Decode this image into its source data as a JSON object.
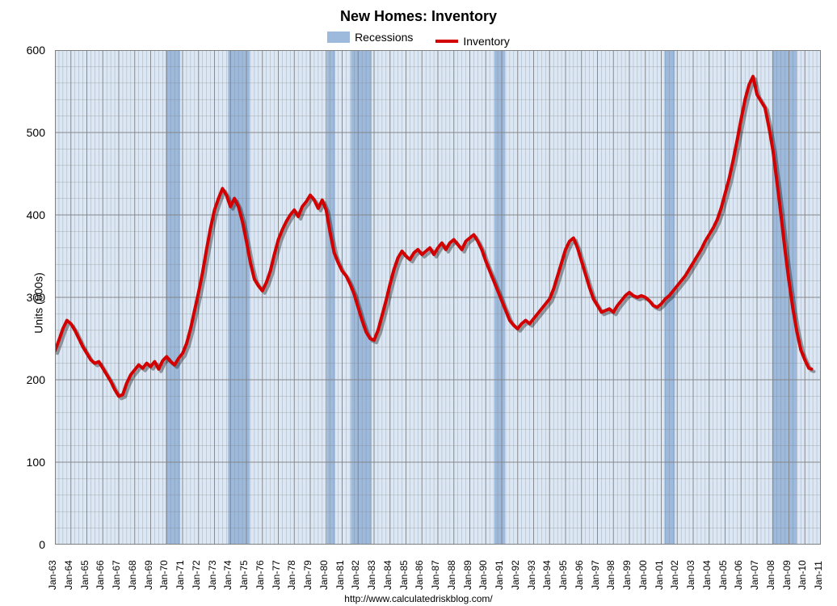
{
  "chart": {
    "type": "line",
    "title": "New Homes: Inventory",
    "y_axis_label": "Units (000s)",
    "footer": "http://www.calculatedriskblog.com/",
    "x_labels": [
      "Jan-63",
      "Jan-64",
      "Jan-65",
      "Jan-66",
      "Jan-67",
      "Jan-68",
      "Jan-69",
      "Jan-70",
      "Jan-71",
      "Jan-72",
      "Jan-73",
      "Jan-74",
      "Jan-75",
      "Jan-76",
      "Jan-77",
      "Jan-78",
      "Jan-79",
      "Jan-80",
      "Jan-81",
      "Jan-82",
      "Jan-83",
      "Jan-84",
      "Jan-85",
      "Jan-86",
      "Jan-87",
      "Jan-88",
      "Jan-89",
      "Jan-90",
      "Jan-91",
      "Jan-92",
      "Jan-93",
      "Jan-94",
      "Jan-95",
      "Jan-96",
      "Jan-97",
      "Jan-98",
      "Jan-99",
      "Jan-00",
      "Jan-01",
      "Jan-02",
      "Jan-03",
      "Jan-04",
      "Jan-05",
      "Jan-06",
      "Jan-07",
      "Jan-08",
      "Jan-09",
      "Jan-10",
      "Jan-11"
    ],
    "x_range": {
      "start_year": 1963,
      "end_year": 2011
    },
    "y_ticks": [
      0,
      100,
      200,
      300,
      400,
      500,
      600
    ],
    "ylim": [
      0,
      600
    ],
    "background_color": "#dbe7f4",
    "panel_border_color": "#808080",
    "grid_color": "#808080",
    "grid_minor_stroke": 0.5,
    "grid_major_stroke": 1,
    "recession_color": "#9db9dc",
    "line_color": "#d20000",
    "line_width": 4,
    "line_shadow_color": "rgba(0,0,0,0.35)",
    "line_shadow_dx": 3,
    "line_shadow_dy": 3,
    "title_fontsize": 18,
    "label_fontsize": 14,
    "tick_fontsize": 14,
    "legend": [
      {
        "label": "Recessions",
        "type": "swatch",
        "color": "#9db9dc"
      },
      {
        "label": "Inventory",
        "type": "line",
        "color": "#d20000"
      }
    ],
    "recessions": [
      {
        "start": 1969.95,
        "end": 1970.85
      },
      {
        "start": 1973.85,
        "end": 1975.2
      },
      {
        "start": 1980.05,
        "end": 1980.55
      },
      {
        "start": 1981.55,
        "end": 1982.85
      },
      {
        "start": 1990.55,
        "end": 1991.2
      },
      {
        "start": 2001.2,
        "end": 2001.85
      },
      {
        "start": 2007.95,
        "end": 2009.5
      }
    ],
    "series": {
      "name": "Inventory",
      "points": [
        {
          "t": 1963.0,
          "v": 235
        },
        {
          "t": 1963.25,
          "v": 248
        },
        {
          "t": 1963.5,
          "v": 262
        },
        {
          "t": 1963.75,
          "v": 272
        },
        {
          "t": 1964.0,
          "v": 268
        },
        {
          "t": 1964.25,
          "v": 260
        },
        {
          "t": 1964.5,
          "v": 250
        },
        {
          "t": 1964.75,
          "v": 240
        },
        {
          "t": 1965.0,
          "v": 232
        },
        {
          "t": 1965.25,
          "v": 224
        },
        {
          "t": 1965.5,
          "v": 220
        },
        {
          "t": 1965.75,
          "v": 222
        },
        {
          "t": 1966.0,
          "v": 214
        },
        {
          "t": 1966.25,
          "v": 206
        },
        {
          "t": 1966.5,
          "v": 198
        },
        {
          "t": 1966.75,
          "v": 188
        },
        {
          "t": 1967.0,
          "v": 180
        },
        {
          "t": 1967.25,
          "v": 182
        },
        {
          "t": 1967.5,
          "v": 196
        },
        {
          "t": 1967.75,
          "v": 206
        },
        {
          "t": 1968.0,
          "v": 212
        },
        {
          "t": 1968.25,
          "v": 218
        },
        {
          "t": 1968.5,
          "v": 214
        },
        {
          "t": 1968.75,
          "v": 220
        },
        {
          "t": 1969.0,
          "v": 216
        },
        {
          "t": 1969.25,
          "v": 222
        },
        {
          "t": 1969.5,
          "v": 213
        },
        {
          "t": 1969.75,
          "v": 223
        },
        {
          "t": 1970.0,
          "v": 228
        },
        {
          "t": 1970.25,
          "v": 222
        },
        {
          "t": 1970.5,
          "v": 218
        },
        {
          "t": 1970.75,
          "v": 226
        },
        {
          "t": 1971.0,
          "v": 232
        },
        {
          "t": 1971.25,
          "v": 244
        },
        {
          "t": 1971.5,
          "v": 262
        },
        {
          "t": 1971.75,
          "v": 284
        },
        {
          "t": 1972.0,
          "v": 306
        },
        {
          "t": 1972.25,
          "v": 330
        },
        {
          "t": 1972.5,
          "v": 358
        },
        {
          "t": 1972.75,
          "v": 384
        },
        {
          "t": 1973.0,
          "v": 406
        },
        {
          "t": 1973.25,
          "v": 420
        },
        {
          "t": 1973.5,
          "v": 432
        },
        {
          "t": 1973.75,
          "v": 424
        },
        {
          "t": 1974.0,
          "v": 410
        },
        {
          "t": 1974.25,
          "v": 420
        },
        {
          "t": 1974.5,
          "v": 410
        },
        {
          "t": 1974.75,
          "v": 392
        },
        {
          "t": 1975.0,
          "v": 368
        },
        {
          "t": 1975.25,
          "v": 342
        },
        {
          "t": 1975.5,
          "v": 322
        },
        {
          "t": 1975.75,
          "v": 314
        },
        {
          "t": 1976.0,
          "v": 308
        },
        {
          "t": 1976.25,
          "v": 318
        },
        {
          "t": 1976.5,
          "v": 332
        },
        {
          "t": 1976.75,
          "v": 352
        },
        {
          "t": 1977.0,
          "v": 370
        },
        {
          "t": 1977.25,
          "v": 382
        },
        {
          "t": 1977.5,
          "v": 392
        },
        {
          "t": 1977.75,
          "v": 400
        },
        {
          "t": 1978.0,
          "v": 406
        },
        {
          "t": 1978.25,
          "v": 398
        },
        {
          "t": 1978.5,
          "v": 410
        },
        {
          "t": 1978.75,
          "v": 416
        },
        {
          "t": 1979.0,
          "v": 424
        },
        {
          "t": 1979.25,
          "v": 418
        },
        {
          "t": 1979.5,
          "v": 408
        },
        {
          "t": 1979.75,
          "v": 418
        },
        {
          "t": 1980.0,
          "v": 406
        },
        {
          "t": 1980.25,
          "v": 378
        },
        {
          "t": 1980.5,
          "v": 354
        },
        {
          "t": 1980.75,
          "v": 342
        },
        {
          "t": 1981.0,
          "v": 332
        },
        {
          "t": 1981.25,
          "v": 326
        },
        {
          "t": 1981.5,
          "v": 316
        },
        {
          "t": 1981.75,
          "v": 304
        },
        {
          "t": 1982.0,
          "v": 288
        },
        {
          "t": 1982.25,
          "v": 272
        },
        {
          "t": 1982.5,
          "v": 258
        },
        {
          "t": 1982.75,
          "v": 250
        },
        {
          "t": 1983.0,
          "v": 248
        },
        {
          "t": 1983.25,
          "v": 260
        },
        {
          "t": 1983.5,
          "v": 278
        },
        {
          "t": 1983.75,
          "v": 296
        },
        {
          "t": 1984.0,
          "v": 316
        },
        {
          "t": 1984.25,
          "v": 334
        },
        {
          "t": 1984.5,
          "v": 348
        },
        {
          "t": 1984.75,
          "v": 356
        },
        {
          "t": 1985.0,
          "v": 350
        },
        {
          "t": 1985.25,
          "v": 346
        },
        {
          "t": 1985.5,
          "v": 354
        },
        {
          "t": 1985.75,
          "v": 358
        },
        {
          "t": 1986.0,
          "v": 352
        },
        {
          "t": 1986.25,
          "v": 356
        },
        {
          "t": 1986.5,
          "v": 360
        },
        {
          "t": 1986.75,
          "v": 352
        },
        {
          "t": 1987.0,
          "v": 360
        },
        {
          "t": 1987.25,
          "v": 366
        },
        {
          "t": 1987.5,
          "v": 358
        },
        {
          "t": 1987.75,
          "v": 366
        },
        {
          "t": 1988.0,
          "v": 370
        },
        {
          "t": 1988.25,
          "v": 364
        },
        {
          "t": 1988.5,
          "v": 358
        },
        {
          "t": 1988.75,
          "v": 368
        },
        {
          "t": 1989.0,
          "v": 372
        },
        {
          "t": 1989.25,
          "v": 376
        },
        {
          "t": 1989.5,
          "v": 368
        },
        {
          "t": 1989.75,
          "v": 358
        },
        {
          "t": 1990.0,
          "v": 344
        },
        {
          "t": 1990.25,
          "v": 332
        },
        {
          "t": 1990.5,
          "v": 320
        },
        {
          "t": 1990.75,
          "v": 308
        },
        {
          "t": 1991.0,
          "v": 296
        },
        {
          "t": 1991.25,
          "v": 284
        },
        {
          "t": 1991.5,
          "v": 272
        },
        {
          "t": 1991.75,
          "v": 266
        },
        {
          "t": 1992.0,
          "v": 262
        },
        {
          "t": 1992.25,
          "v": 268
        },
        {
          "t": 1992.5,
          "v": 272
        },
        {
          "t": 1992.75,
          "v": 268
        },
        {
          "t": 1993.0,
          "v": 274
        },
        {
          "t": 1993.25,
          "v": 280
        },
        {
          "t": 1993.5,
          "v": 286
        },
        {
          "t": 1993.75,
          "v": 292
        },
        {
          "t": 1994.0,
          "v": 298
        },
        {
          "t": 1994.25,
          "v": 310
        },
        {
          "t": 1994.5,
          "v": 326
        },
        {
          "t": 1994.75,
          "v": 342
        },
        {
          "t": 1995.0,
          "v": 358
        },
        {
          "t": 1995.25,
          "v": 368
        },
        {
          "t": 1995.5,
          "v": 372
        },
        {
          "t": 1995.75,
          "v": 360
        },
        {
          "t": 1996.0,
          "v": 344
        },
        {
          "t": 1996.25,
          "v": 328
        },
        {
          "t": 1996.5,
          "v": 312
        },
        {
          "t": 1996.75,
          "v": 298
        },
        {
          "t": 1997.0,
          "v": 290
        },
        {
          "t": 1997.25,
          "v": 282
        },
        {
          "t": 1997.5,
          "v": 284
        },
        {
          "t": 1997.75,
          "v": 286
        },
        {
          "t": 1998.0,
          "v": 282
        },
        {
          "t": 1998.25,
          "v": 290
        },
        {
          "t": 1998.5,
          "v": 296
        },
        {
          "t": 1998.75,
          "v": 302
        },
        {
          "t": 1999.0,
          "v": 306
        },
        {
          "t": 1999.25,
          "v": 302
        },
        {
          "t": 1999.5,
          "v": 300
        },
        {
          "t": 1999.75,
          "v": 302
        },
        {
          "t": 2000.0,
          "v": 300
        },
        {
          "t": 2000.25,
          "v": 296
        },
        {
          "t": 2000.5,
          "v": 290
        },
        {
          "t": 2000.75,
          "v": 288
        },
        {
          "t": 2001.0,
          "v": 292
        },
        {
          "t": 2001.25,
          "v": 298
        },
        {
          "t": 2001.5,
          "v": 302
        },
        {
          "t": 2001.75,
          "v": 308
        },
        {
          "t": 2002.0,
          "v": 314
        },
        {
          "t": 2002.25,
          "v": 320
        },
        {
          "t": 2002.5,
          "v": 326
        },
        {
          "t": 2002.75,
          "v": 334
        },
        {
          "t": 2003.0,
          "v": 342
        },
        {
          "t": 2003.25,
          "v": 350
        },
        {
          "t": 2003.5,
          "v": 358
        },
        {
          "t": 2003.75,
          "v": 368
        },
        {
          "t": 2004.0,
          "v": 376
        },
        {
          "t": 2004.25,
          "v": 384
        },
        {
          "t": 2004.5,
          "v": 394
        },
        {
          "t": 2004.75,
          "v": 408
        },
        {
          "t": 2005.0,
          "v": 426
        },
        {
          "t": 2005.25,
          "v": 444
        },
        {
          "t": 2005.5,
          "v": 466
        },
        {
          "t": 2005.75,
          "v": 490
        },
        {
          "t": 2006.0,
          "v": 516
        },
        {
          "t": 2006.25,
          "v": 540
        },
        {
          "t": 2006.5,
          "v": 558
        },
        {
          "t": 2006.75,
          "v": 568
        },
        {
          "t": 2007.0,
          "v": 546
        },
        {
          "t": 2007.25,
          "v": 538
        },
        {
          "t": 2007.5,
          "v": 530
        },
        {
          "t": 2007.75,
          "v": 506
        },
        {
          "t": 2008.0,
          "v": 478
        },
        {
          "t": 2008.25,
          "v": 440
        },
        {
          "t": 2008.5,
          "v": 400
        },
        {
          "t": 2008.75,
          "v": 358
        },
        {
          "t": 2009.0,
          "v": 320
        },
        {
          "t": 2009.25,
          "v": 286
        },
        {
          "t": 2009.5,
          "v": 258
        },
        {
          "t": 2009.75,
          "v": 236
        },
        {
          "t": 2010.0,
          "v": 224
        },
        {
          "t": 2010.25,
          "v": 214
        },
        {
          "t": 2010.42,
          "v": 213
        }
      ]
    }
  }
}
